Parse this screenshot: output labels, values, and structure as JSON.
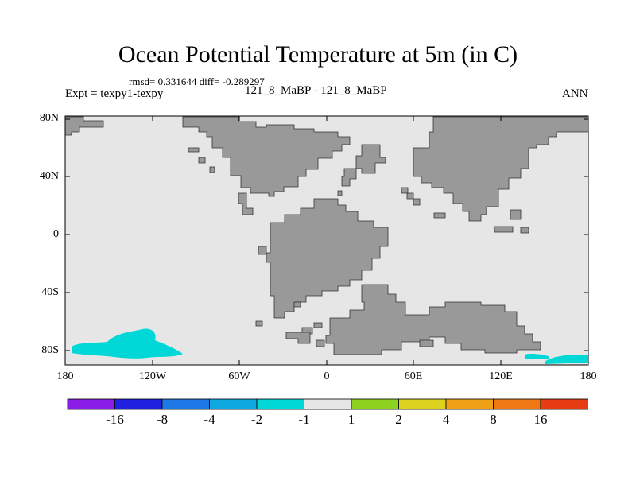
{
  "title": "Ocean Potential Temperature at 5m (in C)",
  "stats_text": "rmsd= 0.331644 diff= -0.289297",
  "expt_text": "Expt = texpy1-texpy",
  "case_text": "121_8_MaBP - 121_8_MaBP",
  "season_text": "ANN",
  "y_axis": {
    "ticks": [
      "80N",
      "40N",
      "0",
      "40S",
      "80S"
    ]
  },
  "x_axis": {
    "ticks": [
      "180",
      "120W",
      "60W",
      "0",
      "60E",
      "120E",
      "180"
    ]
  },
  "colors": {
    "land": "#999999",
    "ocean_neutral": "#e6e6e6",
    "cyan_anomaly": "#00d7d7"
  },
  "colorbar": {
    "colors": [
      "#8a1ee6",
      "#2020e0",
      "#1e78e6",
      "#10a8e0",
      "#00d7d7",
      "#e6e6e6",
      "#8cd21e",
      "#dcd21e",
      "#f0a014",
      "#f07814",
      "#e63c14"
    ],
    "labels": [
      "-16",
      "-8",
      "-4",
      "-2",
      "-1",
      "1",
      "2",
      "4",
      "8",
      "16"
    ]
  }
}
